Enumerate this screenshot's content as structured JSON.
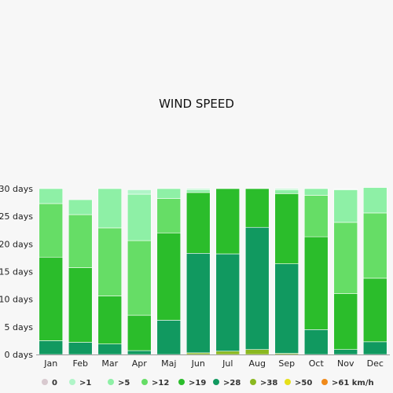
{
  "chart_data": {
    "type": "bar",
    "stacked": true,
    "title": "WIND SPEED",
    "categories": [
      "Jan",
      "Feb",
      "Mar",
      "Apr",
      "Maj",
      "Jun",
      "Jul",
      "Aug",
      "Sep",
      "Oct",
      "Nov",
      "Dec"
    ],
    "y_ticks": [
      "0 days",
      "5 days",
      "10 days",
      "15 days",
      "20 days",
      "25 days",
      "30 days"
    ],
    "ylim": [
      0,
      30
    ],
    "grid": false,
    "legend_position": "bottom",
    "series": [
      {
        "name": "0",
        "color": "#d8c9cf",
        "values": [
          0,
          0,
          0,
          0,
          0,
          0,
          0,
          0,
          0,
          0,
          0,
          0
        ]
      },
      {
        "name": ">1",
        "color": "#b0f5c8",
        "values": [
          0,
          0,
          0,
          0.8,
          0,
          0.2,
          0,
          0,
          0.2,
          0,
          0.1,
          0
        ]
      },
      {
        "name": ">5",
        "color": "#8ef0a6",
        "values": [
          2.7,
          2.7,
          7.1,
          8.4,
          1.8,
          0.5,
          0,
          0,
          0.7,
          1.2,
          5.9,
          4.6
        ]
      },
      {
        "name": ">12",
        "color": "#66dd66",
        "values": [
          9.7,
          9.6,
          12.3,
          13.5,
          6.2,
          0,
          0,
          0,
          0,
          7.5,
          12.9,
          11.8
        ]
      },
      {
        "name": ">19",
        "color": "#2bbd2b",
        "values": [
          15.1,
          13.5,
          8.7,
          6.4,
          15.8,
          11,
          11.8,
          7,
          12.7,
          16.8,
          10.1,
          11.5
        ]
      },
      {
        "name": ">28",
        "color": "#119960",
        "values": [
          2.5,
          2.2,
          1.9,
          0.7,
          6.2,
          18,
          17.6,
          22.1,
          16.2,
          4.5,
          0.9,
          2.3
        ]
      },
      {
        "name": ">38",
        "color": "#8ab820",
        "values": [
          0,
          0,
          0,
          0,
          0,
          0.3,
          0.6,
          0.9,
          0.2,
          0,
          0,
          0
        ]
      },
      {
        "name": ">50",
        "color": "#e6e01a",
        "values": [
          0,
          0,
          0,
          0,
          0,
          0,
          0,
          0,
          0,
          0,
          0,
          0
        ]
      },
      {
        "name": ">61 km/h",
        "color": "#f08a1a",
        "values": [
          0,
          0,
          0,
          0,
          0,
          0,
          0,
          0,
          0,
          0,
          0,
          0
        ]
      }
    ]
  }
}
